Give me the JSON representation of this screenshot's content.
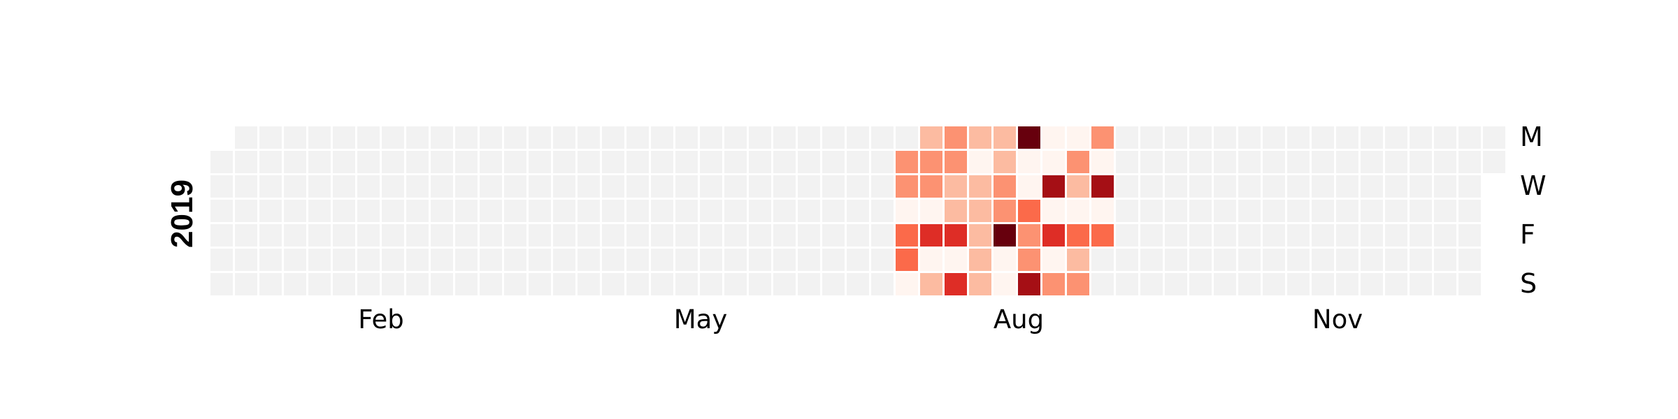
{
  "chart_data": {
    "type": "heatmap",
    "subtype": "calendar",
    "year": "2019",
    "month_labels": [
      "Feb",
      "May",
      "Aug",
      "Nov"
    ],
    "day_labels": [
      "M",
      "W",
      "F",
      "S"
    ],
    "empty_color": "#f2f2f2",
    "cell_border_color": "#ffffff",
    "colormap": [
      "#fff5f0",
      "#fcbba1",
      "#fc9272",
      "#fb6a4a",
      "#de2d26",
      "#a50f15",
      "#67000d"
    ],
    "value_range": [
      0,
      6
    ],
    "active_weeks": [
      {
        "week": 28,
        "values": [
          null,
          2,
          2,
          0,
          3,
          3,
          0
        ]
      },
      {
        "week": 29,
        "values": [
          1,
          2,
          2,
          0,
          4,
          0,
          1
        ]
      },
      {
        "week": 30,
        "values": [
          2,
          2,
          1,
          1,
          4,
          0,
          4
        ]
      },
      {
        "week": 31,
        "values": [
          1,
          0,
          1,
          1,
          1,
          1,
          1
        ]
      },
      {
        "week": 32,
        "values": [
          1,
          1,
          2,
          2,
          6,
          0,
          0
        ]
      },
      {
        "week": 33,
        "values": [
          6,
          0,
          0,
          3,
          2,
          2,
          5
        ]
      },
      {
        "week": 34,
        "values": [
          0,
          0,
          5,
          0,
          4,
          0,
          2
        ]
      },
      {
        "week": 35,
        "values": [
          0,
          2,
          1,
          0,
          3,
          1,
          2
        ]
      },
      {
        "week": 36,
        "values": [
          2,
          0,
          5,
          0,
          3,
          null,
          null
        ]
      }
    ]
  }
}
